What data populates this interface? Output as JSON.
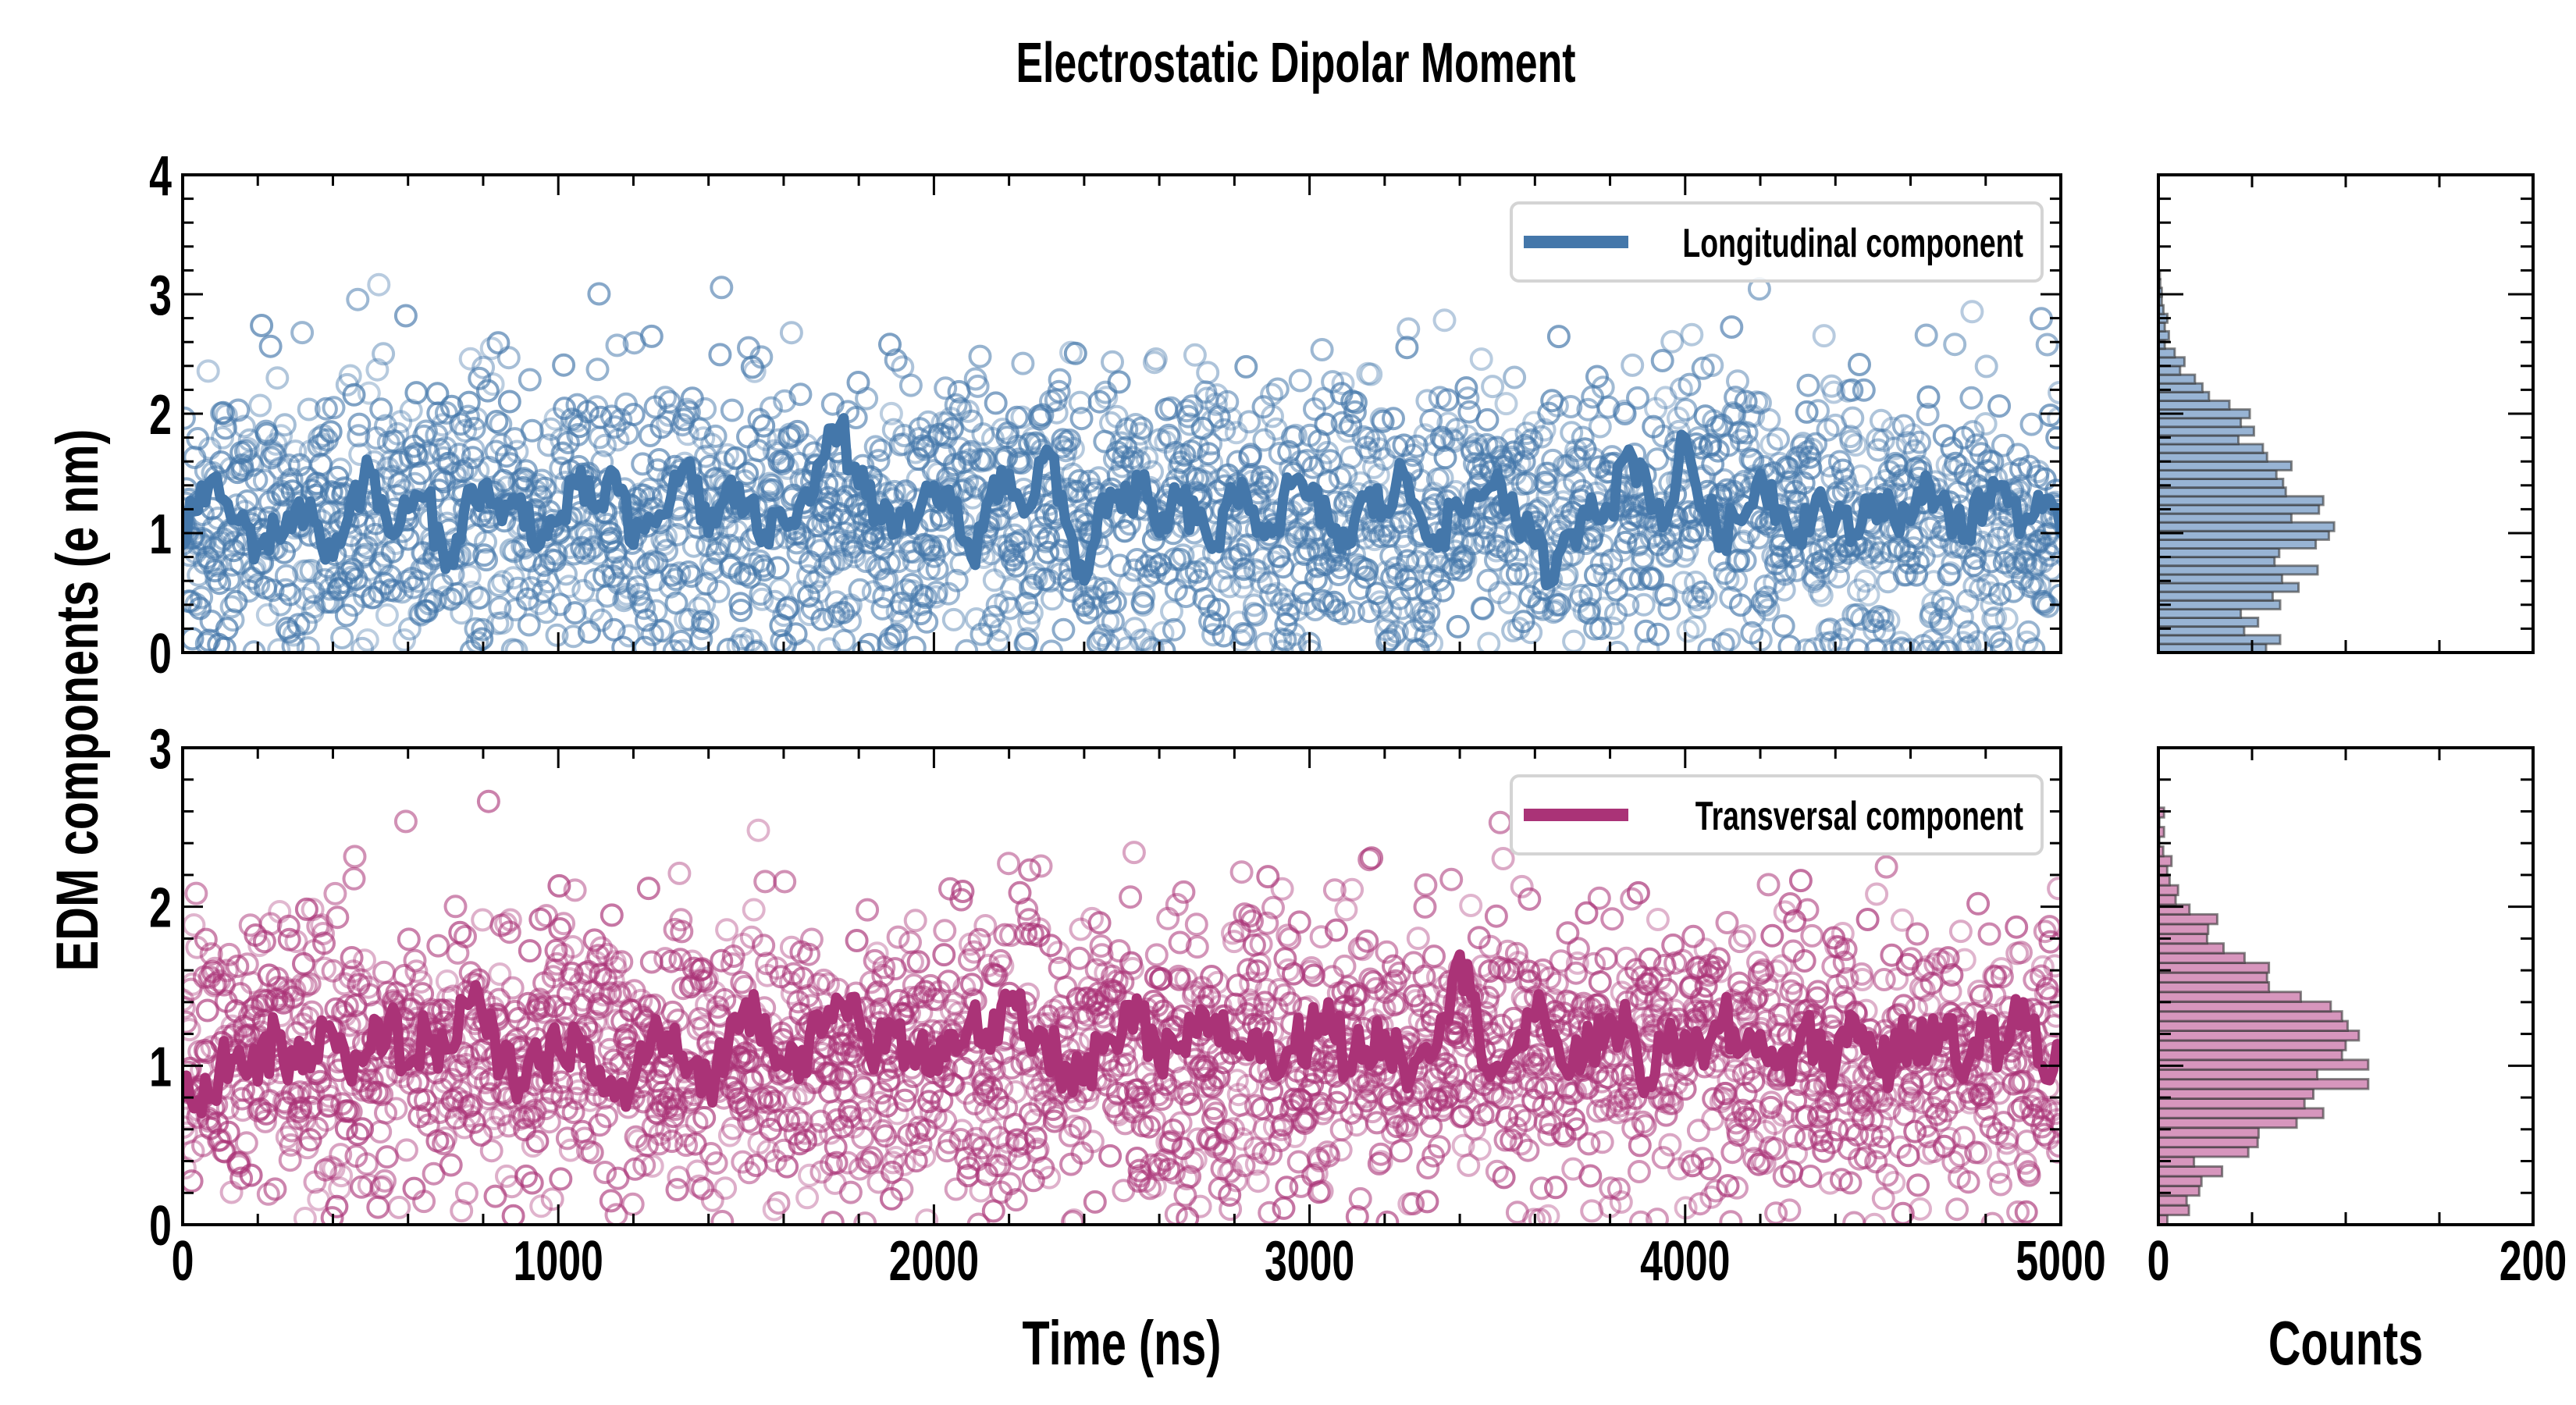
{
  "chart_data": [
    {
      "type": "scatter",
      "panel": "top-main",
      "title": "Electrostatic Dipolar Moment",
      "xlabel": "Time (ns)",
      "ylabel": "EDM components (e nm)",
      "xlim": [
        0,
        5000
      ],
      "ylim": [
        0,
        4
      ],
      "xticks": [
        "0",
        "1000",
        "2000",
        "3000",
        "4000",
        "5000"
      ],
      "yticks": [
        "0",
        "1",
        "2",
        "3",
        "4"
      ],
      "legend": {
        "label": "Longitudinal component",
        "placement": "top-right"
      },
      "scatter_color": "#4477aa",
      "line_color": "#4477aa",
      "scatter_points_approx": 2500,
      "scatter_distribution": {
        "mean": 1.1,
        "sd": 0.62,
        "min": 0,
        "max": 3.1
      },
      "rolling_mean": {
        "x_step": 50,
        "values": [
          0.9,
          1.4,
          1.3,
          1.1,
          0.9,
          1.0,
          1.2,
          1.1,
          0.8,
          1.3,
          1.5,
          1.0,
          1.2,
          1.3,
          0.7,
          1.2,
          1.4,
          1.1,
          1.3,
          0.9,
          1.1,
          1.4,
          1.2,
          1.5,
          0.9,
          1.1,
          1.3,
          1.6,
          1.0,
          1.4,
          1.2,
          1.0,
          1.1,
          1.3,
          1.6,
          1.9,
          1.4,
          1.2,
          1.0,
          1.1,
          1.4,
          1.2,
          0.8,
          1.3,
          1.5,
          1.2,
          1.7,
          1.1,
          0.6,
          1.3,
          1.2,
          1.4,
          1.0,
          1.3,
          1.1,
          0.9,
          1.3,
          1.2,
          1.0,
          1.4,
          1.3,
          1.1,
          0.9,
          1.3,
          1.2,
          1.5,
          1.1,
          1.0,
          1.2,
          1.3,
          1.5,
          1.1,
          0.9,
          0.6,
          1.0,
          1.3,
          1.2,
          1.7,
          1.4,
          1.1,
          1.8,
          1.2,
          1.0,
          1.1,
          1.5,
          1.2,
          1.0,
          1.3,
          1.1,
          1.0,
          1.3,
          1.2,
          1.1,
          1.4,
          1.2,
          1.0,
          1.3,
          1.4,
          1.1,
          1.2,
          1.0
        ]
      }
    },
    {
      "type": "bar",
      "orientation": "horizontal",
      "panel": "top-hist",
      "xlabel": "Counts",
      "xlim": [
        0,
        200
      ],
      "ylim": [
        0,
        4
      ],
      "bar_color": "#98b4d4",
      "bin_width": 0.0727,
      "values": [
        57.5,
        65,
        45.8,
        53.2,
        44,
        65,
        61,
        74.8,
        66,
        85,
        62,
        64.5,
        84,
        91,
        93.8,
        71,
        85.7,
        88,
        68,
        66.6,
        63,
        71,
        58,
        55.8,
        42.7,
        51,
        44,
        48.8,
        37.9,
        27,
        23.5,
        19.5,
        11.6,
        13.9,
        8.7,
        3.4,
        5.6,
        3.4,
        4.8,
        2.7,
        1.8,
        1.8,
        1,
        0.8
      ]
    },
    {
      "type": "scatter",
      "panel": "bottom-main",
      "xlabel": "Time (ns)",
      "xlim": [
        0,
        5000
      ],
      "ylim": [
        0,
        3
      ],
      "xticks": [
        "0",
        "1000",
        "2000",
        "3000",
        "4000",
        "5000"
      ],
      "yticks": [
        "0",
        "1",
        "2",
        "3"
      ],
      "legend": {
        "label": "Transversal component",
        "placement": "top-right"
      },
      "scatter_color": "#aa3377",
      "line_color": "#aa3377",
      "scatter_points_approx": 2500,
      "scatter_distribution": {
        "mean": 1.05,
        "sd": 0.45,
        "min": 0,
        "max": 2.7
      },
      "rolling_mean": {
        "x_step": 50,
        "values": [
          0.8,
          0.7,
          1.0,
          1.1,
          0.9,
          1.2,
          1.0,
          1.1,
          1.2,
          0.9,
          1.1,
          1.3,
          1.0,
          1.2,
          1.1,
          1.4,
          1.3,
          1.0,
          0.9,
          1.0,
          1.1,
          1.2,
          0.9,
          0.8,
          0.9,
          1.2,
          1.1,
          1.0,
          0.9,
          1.1,
          1.4,
          1.3,
          1.0,
          1.1,
          1.2,
          1.4,
          1.3,
          1.1,
          1.2,
          1.0,
          1.1,
          1.2,
          1.3,
          1.1,
          1.4,
          1.2,
          1.1,
          1.0,
          0.9,
          1.1,
          1.2,
          1.3,
          1.0,
          1.1,
          1.2,
          1.3,
          1.1,
          1.2,
          1.0,
          1.1,
          1.2,
          1.4,
          1.0,
          1.1,
          1.2,
          1.0,
          1.1,
          1.3,
          1.7,
          1.2,
          1.0,
          1.1,
          1.3,
          1.2,
          1.0,
          1.1,
          1.3,
          1.2,
          0.9,
          1.1,
          1.2,
          1.0,
          1.3,
          1.1,
          1.2,
          1.0,
          1.1,
          1.2,
          1.0,
          1.3,
          1.1,
          1.0,
          1.2,
          1.1,
          1.3,
          1.0,
          1.2,
          1.1,
          1.4,
          1.0,
          1.1
        ]
      }
    },
    {
      "type": "bar",
      "orientation": "horizontal",
      "panel": "bottom-hist",
      "xlabel": "Counts",
      "xlim": [
        0,
        200
      ],
      "xticks": [
        "0",
        "200"
      ],
      "ylim": [
        0,
        3
      ],
      "bar_color": "#d796bd",
      "bin_width": 0.061,
      "values": [
        4.8,
        16.3,
        15.1,
        21.8,
        23,
        34,
        19,
        48,
        53,
        53.5,
        73.8,
        88,
        78,
        82.7,
        112,
        84.8,
        112,
        98,
        100,
        107,
        101,
        98,
        92,
        76,
        59,
        58,
        59,
        46,
        34.8,
        26,
        26.6,
        31.4,
        16.6,
        9.2,
        10.5,
        6,
        4.7,
        7,
        2.6,
        0.5,
        3,
        0.5,
        3
      ]
    }
  ]
}
